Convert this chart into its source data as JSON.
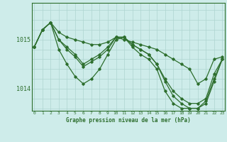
{
  "title": "Graphe pression niveau de la mer (hPa)",
  "background_color": "#ceecea",
  "grid_color": "#aed4d0",
  "line_color": "#2d6e2d",
  "x_ticks": [
    0,
    1,
    2,
    3,
    4,
    5,
    6,
    7,
    8,
    9,
    10,
    11,
    12,
    13,
    14,
    15,
    16,
    17,
    18,
    19,
    20,
    21,
    22,
    23
  ],
  "y_ticks": [
    1014,
    1015
  ],
  "ylim": [
    1013.55,
    1015.75
  ],
  "xlim": [
    -0.3,
    23.3
  ],
  "series": [
    [
      1014.85,
      1015.2,
      1015.35,
      1015.15,
      1015.05,
      1015.0,
      1014.95,
      1014.9,
      1014.9,
      1014.95,
      1015.05,
      1015.0,
      1014.95,
      1014.9,
      1014.85,
      1014.8,
      1014.7,
      1014.6,
      1014.5,
      1014.4,
      1014.1,
      1014.2,
      1014.6,
      1014.65
    ],
    [
      1014.85,
      1015.2,
      1015.35,
      1015.0,
      1014.8,
      1014.65,
      1014.45,
      1014.55,
      1014.65,
      1014.8,
      1015.05,
      1015.05,
      1014.9,
      1014.8,
      1014.7,
      1014.5,
      1014.2,
      1013.95,
      1013.8,
      1013.7,
      1013.7,
      1013.8,
      1014.3,
      1014.6
    ],
    [
      1014.85,
      1015.2,
      1015.35,
      1014.8,
      1014.5,
      1014.25,
      1014.1,
      1014.2,
      1014.4,
      1014.7,
      1015.0,
      1015.05,
      1014.85,
      1014.7,
      1014.6,
      1014.4,
      1013.95,
      1013.7,
      1013.6,
      1013.6,
      1013.6,
      1013.7,
      1014.15,
      1014.6
    ],
    [
      1014.85,
      1015.2,
      1015.35,
      1015.0,
      1014.85,
      1014.7,
      1014.5,
      1014.6,
      1014.7,
      1014.85,
      1015.05,
      1015.05,
      1014.9,
      1014.8,
      1014.7,
      1014.5,
      1014.15,
      1013.85,
      1013.7,
      1013.6,
      1013.6,
      1013.75,
      1014.2,
      1014.6
    ]
  ]
}
